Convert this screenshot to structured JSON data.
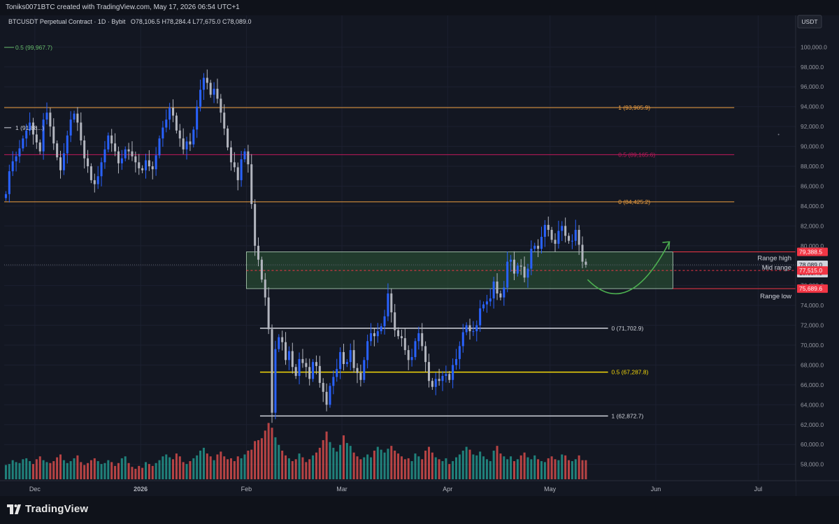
{
  "header": {
    "attribution": "Toniks0071BTC created with TradingView.com, May 17, 2026 06:54 UTC+1",
    "symbol_line": "BTCUSDT Perpetual Contract · 1D · Bybit",
    "ohlc": "O78,106.5 H78,284.4 L77,675.0 C78,089.0"
  },
  "footer": {
    "brand": "TradingView",
    "brand_icon": "tradingview-logo-icon"
  },
  "colors": {
    "background": "#131722",
    "candle_up": "#2962ff",
    "candle_down": "#b2b5be",
    "vol_up": "#26a69a",
    "vol_down": "#ef5350",
    "range_box": "#2e5a36",
    "fib_orange": "#f0a040",
    "fib_pink": "#c2185b",
    "fib_white": "#d1d4dc",
    "fib_yellow": "#f5d90a",
    "price_label_red": "#f23645",
    "arrow_green": "#4caf50"
  },
  "chart_data": {
    "type": "candlestick",
    "title": "BTCUSDT Perpetual Contract · 1D · Bybit",
    "currency": "USDT",
    "ylim": [
      56500,
      101500
    ],
    "y_ticks": [
      58000,
      60000,
      62000,
      64000,
      66000,
      68000,
      70000,
      72000,
      74000,
      76000,
      78000,
      80000,
      82000,
      84000,
      86000,
      88000,
      90000,
      92000,
      94000,
      96000,
      98000,
      100000
    ],
    "y_tick_labels": [
      "58,000.0",
      "60,000.0",
      "62,000.0",
      "64,000.0",
      "66,000.0",
      "68,000.0",
      "70,000.0",
      "72,000.0",
      "74,000.0",
      "76,000.0",
      "78,000.0",
      "80,000.0",
      "82,000.0",
      "84,000.0",
      "86,000.0",
      "88,000.0",
      "90,000.0",
      "92,000.0",
      "94,000.0",
      "96,000.0",
      "98,000.0",
      "100,000.0"
    ],
    "x_range": [
      "2025-11-22",
      "2026-07-12"
    ],
    "x_ticks": [
      {
        "date": "2025-12-01",
        "label": "Dec",
        "bold": false
      },
      {
        "date": "2026-01-01",
        "label": "2026",
        "bold": true
      },
      {
        "date": "2026-02-01",
        "label": "Feb",
        "bold": false
      },
      {
        "date": "2026-03-01",
        "label": "Mar",
        "bold": false
      },
      {
        "date": "2026-04-01",
        "label": "Apr",
        "bold": false
      },
      {
        "date": "2026-05-01",
        "label": "May",
        "bold": false
      },
      {
        "date": "2026-06-01",
        "label": "Jun",
        "bold": false
      },
      {
        "date": "2026-07-01",
        "label": "Jul",
        "bold": false
      }
    ],
    "candles_start_date": "2025-11-22",
    "closes": [
      85200,
      87500,
      88500,
      89000,
      89800,
      90800,
      91600,
      92400,
      91200,
      90400,
      89500,
      92700,
      93400,
      92000,
      90300,
      88900,
      87600,
      89300,
      91100,
      92700,
      93300,
      92400,
      90600,
      88800,
      88000,
      86600,
      86200,
      87000,
      88400,
      89700,
      91100,
      90300,
      89500,
      88300,
      88800,
      89700,
      89500,
      89000,
      88400,
      87800,
      87600,
      88600,
      88000,
      87700,
      89100,
      90800,
      91900,
      92700,
      93900,
      93100,
      91600,
      90800,
      89700,
      90500,
      90200,
      91700,
      94000,
      95700,
      96900,
      96400,
      95200,
      95800,
      94800,
      93400,
      91800,
      89900,
      88400,
      87900,
      86600,
      88700,
      89500,
      88200,
      84200,
      80000,
      78600,
      76600,
      74800,
      71600,
      63200,
      69600,
      70800,
      70300,
      68500,
      69400,
      67800,
      66900,
      68600,
      68200,
      67800,
      66600,
      68300,
      67900,
      66200,
      65300,
      64000,
      65900,
      66800,
      67600,
      69300,
      68100,
      68300,
      69500,
      67700,
      67200,
      66500,
      68500,
      70400,
      71200,
      70900,
      71400,
      71900,
      72900,
      75200,
      73300,
      71500,
      70900,
      70700,
      69500,
      68500,
      68800,
      70400,
      71200,
      69900,
      68300,
      66400,
      65800,
      66600,
      66400,
      66900,
      67100,
      66500,
      68000,
      68600,
      69900,
      71300,
      72000,
      71400,
      71400,
      72000,
      73700,
      74100,
      74400,
      74700,
      76400,
      75200,
      74800,
      75800,
      78400,
      78600,
      77200,
      78000,
      77900,
      76800,
      77700,
      79700,
      80000,
      79700,
      80900,
      82100,
      81600,
      80600,
      80200,
      81500,
      82000,
      81000,
      80500,
      80500,
      81600,
      80100,
      78400,
      78089
    ],
    "volume_ylim": [
      0,
      3.0
    ],
    "volumes": [
      0.75,
      0.8,
      1.0,
      0.9,
      0.85,
      1.05,
      1.1,
      0.95,
      0.8,
      1.05,
      1.2,
      1.0,
      0.9,
      0.85,
      0.95,
      1.15,
      1.3,
      1.0,
      0.85,
      0.95,
      1.1,
      1.25,
      0.9,
      0.75,
      0.85,
      1.0,
      1.1,
      0.95,
      0.8,
      0.85,
      1.0,
      0.9,
      0.7,
      0.85,
      1.1,
      1.2,
      0.85,
      0.65,
      0.55,
      0.7,
      0.6,
      0.9,
      0.8,
      0.7,
      0.85,
      1.0,
      1.2,
      1.3,
      1.15,
      1.05,
      1.35,
      1.2,
      0.9,
      0.8,
      0.95,
      1.1,
      1.25,
      1.5,
      1.65,
      1.35,
      1.2,
      1.0,
      1.3,
      1.45,
      1.2,
      1.05,
      1.1,
      0.95,
      1.2,
      1.1,
      1.3,
      1.5,
      1.55,
      2.0,
      2.05,
      2.15,
      2.55,
      2.95,
      2.7,
      2.2,
      1.8,
      1.5,
      1.25,
      1.1,
      0.95,
      1.05,
      1.35,
      1.15,
      0.9,
      1.05,
      1.25,
      1.4,
      1.65,
      2.05,
      2.5,
      1.95,
      1.65,
      1.45,
      1.8,
      2.3,
      1.9,
      1.75,
      1.4,
      1.2,
      1.05,
      1.15,
      1.3,
      1.15,
      1.5,
      1.7,
      1.55,
      1.4,
      1.6,
      1.75,
      1.5,
      1.35,
      1.2,
      1.05,
      1.1,
      0.95,
      1.35,
      1.2,
      1.05,
      1.5,
      1.7,
      1.4,
      1.15,
      1.05,
      0.95,
      1.1,
      0.8,
      0.95,
      1.15,
      1.3,
      1.5,
      1.7,
      1.55,
      1.3,
      1.25,
      1.45,
      1.2,
      1.05,
      0.95,
      1.5,
      1.75,
      1.35,
      1.2,
      1.05,
      1.2,
      0.95,
      1.05,
      1.25,
      1.4,
      1.15,
      1.05,
      1.25,
      1.05,
      0.95,
      0.9,
      1.1,
      1.2,
      1.05,
      1.0,
      1.3,
      1.25,
      1.0,
      0.95,
      1.05,
      1.25
    ],
    "annotations": {
      "top_left_fib": {
        "text": "0.5 (99,967.7)",
        "price": 99967.7
      },
      "old_range_levels": [
        {
          "text": "1 (93,905.9)",
          "price": 93905.9,
          "color": "#f0a040"
        },
        {
          "text": "0.5 (89,165.6)",
          "price": 89165.6,
          "color": "#c2185b"
        },
        {
          "text": "0 (84,425.2)",
          "price": 84425.2,
          "color": "#f0a040"
        }
      ],
      "left_marker": {
        "text": "1 (91,88...)",
        "price": 91880
      },
      "lower_levels": [
        {
          "text": "0 (71,702.9)",
          "price": 71702.9,
          "color": "#d1d4dc"
        },
        {
          "text": "0.5 (67,287.8)",
          "price": 67287.8,
          "color": "#f5d90a"
        },
        {
          "text": "1 (62,872.7)",
          "price": 62872.7,
          "color": "#d1d4dc"
        }
      ],
      "range_box": {
        "high": 79388.5,
        "mid": 77515.0,
        "low": 75689.6,
        "start_date": "2026-02-01",
        "end_date": "2026-06-06"
      },
      "range_labels": {
        "high": "Range high",
        "mid": "Mid range",
        "low": "Range low"
      },
      "arrow": {
        "from_date": "2026-05-12",
        "from_price": 76600,
        "via_date": "2026-05-24",
        "via_price": 74400,
        "to_date": "2026-06-05",
        "to_price": 80400
      }
    },
    "price_labels": [
      {
        "text": "79,388.5",
        "price": 79388.5,
        "style": "red"
      },
      {
        "text": "78,089.0",
        "price": 78089.0,
        "style": "white"
      },
      {
        "text": "18:05:40",
        "price": 77800,
        "style": "white-sub"
      },
      {
        "text": "77,515.0",
        "price": 77515.0,
        "style": "red"
      },
      {
        "text": "75,689.6",
        "price": 75689.6,
        "style": "red"
      }
    ]
  }
}
